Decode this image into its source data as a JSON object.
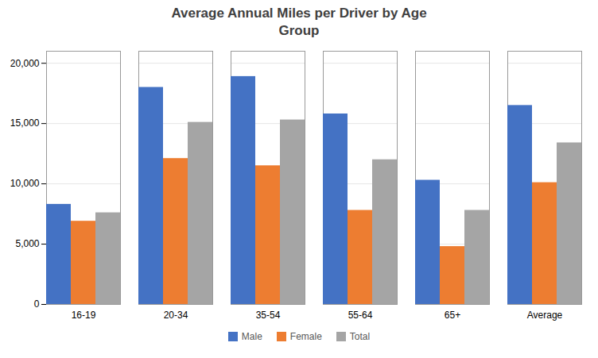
{
  "chart_data": {
    "type": "bar",
    "title": "Average Annual Miles per Driver by Age\nGroup",
    "categories": [
      "16-19",
      "20-34",
      "35-54",
      "55-64",
      "65+",
      "Average"
    ],
    "series": [
      {
        "name": "Male",
        "color": "#4472C4",
        "values": [
          8300,
          18000,
          18900,
          15800,
          10300,
          16500
        ]
      },
      {
        "name": "Female",
        "color": "#ED7D31",
        "values": [
          6900,
          12100,
          11500,
          7800,
          4800,
          10100
        ]
      },
      {
        "name": "Total",
        "color": "#A5A5A5",
        "values": [
          7600,
          15100,
          15300,
          12000,
          7800,
          13400
        ]
      }
    ],
    "ylim": [
      0,
      21000
    ],
    "yticks": [
      0,
      {
        "value": 5000,
        "label": "5,000"
      },
      {
        "value": 10000,
        "label": "10,000"
      },
      {
        "value": 15000,
        "label": "15,000"
      },
      {
        "value": 20000,
        "label": "20,000"
      }
    ],
    "grid": true,
    "legend": "bottom"
  }
}
